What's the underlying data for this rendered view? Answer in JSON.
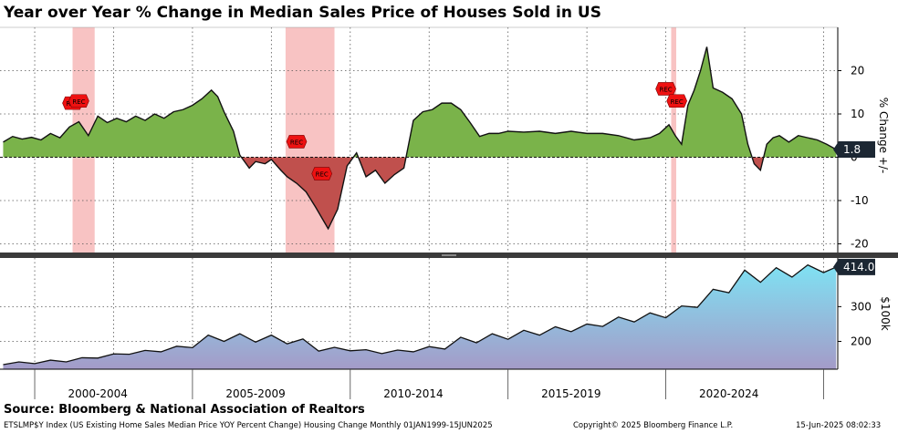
{
  "title": "Year over Year % Change in Median Sales Price of Houses Sold in US",
  "source": "Source: Bloomberg & National Association of Realtors",
  "footer": {
    "left": "ETSLMP$Y Index (US Existing Home Sales Median Price YOY Percent Change) Housing Change  Monthly 01JAN1999-15JUN2025",
    "center": "Copyright© 2025 Bloomberg Finance L.P.",
    "right": "15-Jun-2025 08:02:33"
  },
  "colors": {
    "positive_fill": "#7ab34a",
    "negative_fill": "#c0504d",
    "recession_band": "#f7b8b8",
    "recession_marker": "#ee1111",
    "price_fill_top": "#7fe1f3",
    "price_fill_bottom": "#a49bc8",
    "last_value_bg": "#1c2733"
  },
  "chart_data": [
    {
      "type": "area",
      "title": "Year over Year % Change in Median Sales Price of Houses Sold in US",
      "ylabel": "% Change +/-",
      "ylim": [
        -22,
        30
      ],
      "yticks": [
        -20,
        -10,
        0,
        10,
        20
      ],
      "ytick_labels": [
        "-20",
        "-10",
        "0",
        "10",
        "20"
      ],
      "xlim": [
        1998.9,
        2025.45
      ],
      "grid": true,
      "last_value": "1.8",
      "recessions": [
        [
          2001.2,
          2001.9
        ],
        [
          2007.95,
          2009.5
        ],
        [
          2020.17,
          2020.33
        ]
      ],
      "recession_markers": [
        {
          "x": 2001.2,
          "y": 12.5,
          "label": "REC"
        },
        {
          "x": 2001.4,
          "y": 13.0,
          "label": "REC"
        },
        {
          "x": 2008.3,
          "y": 3.6,
          "label": "REC"
        },
        {
          "x": 2009.1,
          "y": -3.8,
          "label": "REC"
        },
        {
          "x": 2020.0,
          "y": 15.8,
          "label": "REC"
        },
        {
          "x": 2020.35,
          "y": 13.0,
          "label": "REC"
        }
      ],
      "x": [
        1999.0,
        1999.3,
        1999.6,
        1999.9,
        2000.2,
        2000.5,
        2000.8,
        2001.1,
        2001.4,
        2001.7,
        2002.0,
        2002.3,
        2002.6,
        2002.9,
        2003.2,
        2003.5,
        2003.8,
        2004.1,
        2004.4,
        2004.7,
        2005.0,
        2005.3,
        2005.6,
        2005.8,
        2006.0,
        2006.3,
        2006.5,
        2006.8,
        2007.0,
        2007.3,
        2007.5,
        2007.8,
        2008.0,
        2008.3,
        2008.6,
        2008.9,
        2009.1,
        2009.3,
        2009.6,
        2009.9,
        2010.2,
        2010.5,
        2010.8,
        2011.1,
        2011.4,
        2011.7,
        2012.0,
        2012.3,
        2012.6,
        2012.9,
        2013.2,
        2013.5,
        2013.8,
        2014.1,
        2014.4,
        2014.7,
        2015.0,
        2015.5,
        2016.0,
        2016.5,
        2017.0,
        2017.5,
        2018.0,
        2018.5,
        2019.0,
        2019.5,
        2019.8,
        2020.1,
        2020.3,
        2020.5,
        2020.7,
        2020.9,
        2021.1,
        2021.3,
        2021.5,
        2021.8,
        2022.1,
        2022.4,
        2022.6,
        2022.8,
        2023.0,
        2023.2,
        2023.4,
        2023.6,
        2023.9,
        2024.2,
        2024.5,
        2024.8,
        2025.1,
        2025.4
      ],
      "y": [
        3.5,
        4.8,
        4.2,
        4.6,
        4.0,
        5.5,
        4.5,
        7.0,
        8.2,
        5.0,
        9.5,
        8.0,
        9.0,
        8.2,
        9.5,
        8.5,
        10.0,
        9.0,
        10.5,
        11.0,
        12.0,
        13.5,
        15.5,
        14.0,
        10.5,
        6.0,
        0.5,
        -2.5,
        -1.0,
        -1.5,
        -0.5,
        -3.0,
        -4.5,
        -6.0,
        -8.0,
        -11.5,
        -14.0,
        -16.5,
        -12.0,
        -2.0,
        1.0,
        -4.5,
        -3.0,
        -6.0,
        -4.0,
        -2.5,
        8.5,
        10.5,
        11.0,
        12.5,
        12.5,
        11.0,
        8.0,
        4.8,
        5.5,
        5.5,
        6.0,
        5.8,
        6.0,
        5.5,
        6.0,
        5.5,
        5.5,
        5.0,
        4.0,
        4.5,
        5.5,
        7.5,
        5.0,
        3.0,
        12.0,
        15.5,
        20.0,
        25.5,
        16.0,
        15.0,
        13.5,
        10.0,
        3.0,
        -1.5,
        -3.0,
        3.0,
        4.5,
        5.0,
        3.5,
        5.0,
        4.5,
        4.0,
        3.0,
        1.8
      ]
    },
    {
      "type": "area",
      "ylabel": "$100k",
      "ylim": [
        120,
        440
      ],
      "yticks": [
        200,
        300
      ],
      "ytick_labels": [
        "200",
        "300"
      ],
      "xlim": [
        1998.9,
        2025.45
      ],
      "xtick_labels": [
        "2000-2004",
        "2005-2009",
        "2010-2014",
        "2015-2019",
        "2020-2024"
      ],
      "xtick_label_positions": [
        2002.0,
        2007.0,
        2012.0,
        2017.0,
        2022.0
      ],
      "x_dividers": [
        2000.0,
        2005.0,
        2010.0,
        2015.0,
        2020.0,
        2025.0
      ],
      "grid": true,
      "last_value": "414.0",
      "x": [
        1999.0,
        1999.5,
        2000.0,
        2000.5,
        2001.0,
        2001.5,
        2002.0,
        2002.5,
        2003.0,
        2003.5,
        2004.0,
        2004.5,
        2005.0,
        2005.5,
        2006.0,
        2006.5,
        2007.0,
        2007.5,
        2008.0,
        2008.5,
        2009.0,
        2009.5,
        2010.0,
        2010.5,
        2011.0,
        2011.5,
        2012.0,
        2012.5,
        2013.0,
        2013.5,
        2014.0,
        2014.5,
        2015.0,
        2015.5,
        2016.0,
        2016.5,
        2017.0,
        2017.5,
        2018.0,
        2018.5,
        2019.0,
        2019.5,
        2020.0,
        2020.5,
        2021.0,
        2021.5,
        2022.0,
        2022.5,
        2023.0,
        2023.5,
        2024.0,
        2024.5,
        2025.0,
        2025.4
      ],
      "y": [
        133,
        141,
        136,
        146,
        141,
        153,
        152,
        164,
        163,
        174,
        170,
        186,
        182,
        218,
        200,
        222,
        198,
        218,
        193,
        207,
        172,
        183,
        173,
        176,
        165,
        175,
        170,
        185,
        178,
        212,
        196,
        222,
        206,
        232,
        218,
        242,
        228,
        250,
        243,
        270,
        256,
        282,
        268,
        302,
        298,
        350,
        340,
        405,
        370,
        412,
        385,
        420,
        398,
        414
      ]
    }
  ]
}
